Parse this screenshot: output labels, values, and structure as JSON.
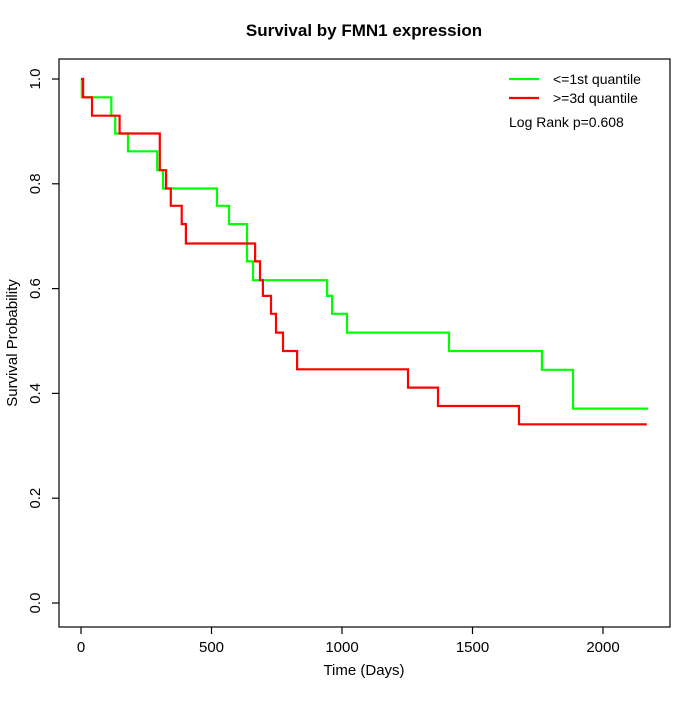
{
  "chart_data": {
    "type": "line",
    "subtype": "kaplan-meier-step-survival",
    "title": "Survival by FMN1 expression",
    "xlabel": "Time (Days)",
    "ylabel": "Survival Probability",
    "xlim": [
      0,
      2256
    ],
    "ylim": [
      0,
      1
    ],
    "x_ticks": [
      0,
      500,
      1000,
      1500,
      2000
    ],
    "y_ticks": [
      "0.0",
      "0.2",
      "0.4",
      "0.6",
      "0.8",
      "1.0"
    ],
    "grid": false,
    "legend_position": "top-right-inside",
    "annotation": "Log Rank p=0.608",
    "axis_color": "#000000",
    "series": [
      {
        "name": "<=1st quantile",
        "color": "#00ff00",
        "start": [
          0,
          1.0
        ],
        "steps": [
          [
            3,
            0.965
          ],
          [
            116,
            0.93
          ],
          [
            131,
            0.896
          ],
          [
            180,
            0.862
          ],
          [
            292,
            0.826
          ],
          [
            314,
            0.791
          ],
          [
            521,
            0.758
          ],
          [
            567,
            0.723
          ],
          [
            636,
            0.652
          ],
          [
            659,
            0.616
          ],
          [
            943,
            0.586
          ],
          [
            962,
            0.552
          ],
          [
            1019,
            0.516
          ],
          [
            1410,
            0.481
          ],
          [
            1766,
            0.445
          ],
          [
            1885,
            0.371
          ]
        ],
        "end_time": 2172
      },
      {
        "name": ">=3d quantile",
        "color": "#ff0000",
        "start": [
          0,
          1.0
        ],
        "steps": [
          [
            8,
            0.965
          ],
          [
            42,
            0.93
          ],
          [
            148,
            0.896
          ],
          [
            302,
            0.826
          ],
          [
            326,
            0.791
          ],
          [
            344,
            0.758
          ],
          [
            386,
            0.723
          ],
          [
            402,
            0.686
          ],
          [
            667,
            0.652
          ],
          [
            686,
            0.616
          ],
          [
            697,
            0.586
          ],
          [
            728,
            0.552
          ],
          [
            747,
            0.516
          ],
          [
            774,
            0.481
          ],
          [
            828,
            0.446
          ],
          [
            1253,
            0.411
          ],
          [
            1368,
            0.376
          ],
          [
            1678,
            0.341
          ]
        ],
        "end_time": 2168
      }
    ]
  }
}
